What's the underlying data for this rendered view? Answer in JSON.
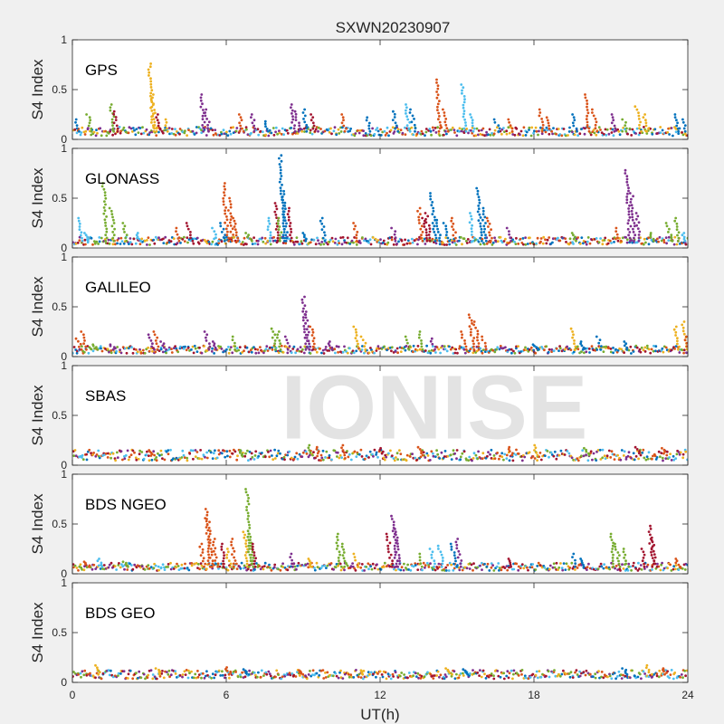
{
  "chart_data": {
    "type": "scatter",
    "title": "SXWN20230907",
    "xlabel": "UT(h)",
    "ylabel": "S4 Index",
    "xlim": [
      0,
      24
    ],
    "ylim": [
      0,
      1
    ],
    "xticks": [
      0,
      6,
      12,
      18,
      24
    ],
    "yticks": [
      0,
      0.5,
      1
    ],
    "yticklabels": [
      "0",
      "0.5",
      "1"
    ],
    "grid": false,
    "legend": "none",
    "watermark": "IONISE",
    "colors": [
      "#0072BD",
      "#D95319",
      "#EDB120",
      "#7E2F8E",
      "#77AC30",
      "#4DBEEE",
      "#A2142F"
    ],
    "panels": [
      {
        "label": "GPS",
        "baseline": 0.08,
        "spikes": [
          [
            0.1,
            0.2,
            0
          ],
          [
            0.6,
            0.25,
            4
          ],
          [
            1.5,
            0.35,
            4
          ],
          [
            1.6,
            0.28,
            6
          ],
          [
            3.0,
            0.76,
            2
          ],
          [
            3.1,
            0.45,
            2
          ],
          [
            3.3,
            0.25,
            6
          ],
          [
            3.6,
            0.2,
            2
          ],
          [
            5.0,
            0.45,
            3
          ],
          [
            5.2,
            0.3,
            3
          ],
          [
            6.5,
            0.25,
            1
          ],
          [
            7.0,
            0.25,
            3
          ],
          [
            7.5,
            0.18,
            0
          ],
          [
            8.5,
            0.35,
            3
          ],
          [
            8.7,
            0.28,
            3
          ],
          [
            9.0,
            0.3,
            0
          ],
          [
            9.3,
            0.25,
            6
          ],
          [
            10.5,
            0.25,
            1
          ],
          [
            11.5,
            0.22,
            0
          ],
          [
            12.5,
            0.28,
            0
          ],
          [
            13.0,
            0.35,
            5
          ],
          [
            13.2,
            0.3,
            0
          ],
          [
            14.2,
            0.6,
            1
          ],
          [
            14.5,
            0.3,
            1
          ],
          [
            15.2,
            0.55,
            5
          ],
          [
            15.5,
            0.25,
            5
          ],
          [
            16.5,
            0.2,
            0
          ],
          [
            17.0,
            0.2,
            1
          ],
          [
            18.2,
            0.3,
            1
          ],
          [
            18.5,
            0.22,
            1
          ],
          [
            19.5,
            0.25,
            0
          ],
          [
            20.0,
            0.45,
            1
          ],
          [
            20.3,
            0.3,
            1
          ],
          [
            21.0,
            0.25,
            3
          ],
          [
            21.5,
            0.2,
            4
          ],
          [
            22.0,
            0.33,
            2
          ],
          [
            22.3,
            0.25,
            2
          ],
          [
            23.5,
            0.25,
            0
          ],
          [
            23.8,
            0.2,
            0
          ]
        ]
      },
      {
        "label": "GLONASS",
        "baseline": 0.07,
        "spikes": [
          [
            0.2,
            0.3,
            5
          ],
          [
            0.5,
            0.15,
            5
          ],
          [
            1.2,
            0.65,
            4
          ],
          [
            1.5,
            0.4,
            4
          ],
          [
            2.0,
            0.25,
            4
          ],
          [
            2.5,
            0.15,
            5
          ],
          [
            4.0,
            0.2,
            1
          ],
          [
            4.5,
            0.25,
            6
          ],
          [
            5.5,
            0.2,
            5
          ],
          [
            5.8,
            0.25,
            0
          ],
          [
            5.9,
            0.65,
            1
          ],
          [
            6.1,
            0.5,
            1
          ],
          [
            6.3,
            0.3,
            1
          ],
          [
            6.8,
            0.15,
            4
          ],
          [
            7.6,
            0.3,
            5
          ],
          [
            7.9,
            0.45,
            6
          ],
          [
            8.0,
            0.3,
            4
          ],
          [
            8.1,
            0.93,
            0
          ],
          [
            8.2,
            0.57,
            0
          ],
          [
            8.4,
            0.4,
            6
          ],
          [
            9.0,
            0.15,
            0
          ],
          [
            9.7,
            0.3,
            0
          ],
          [
            11.0,
            0.25,
            1
          ],
          [
            12.5,
            0.2,
            3
          ],
          [
            13.5,
            0.4,
            1
          ],
          [
            13.7,
            0.3,
            6
          ],
          [
            13.8,
            0.35,
            6
          ],
          [
            14.0,
            0.55,
            0
          ],
          [
            14.2,
            0.28,
            0
          ],
          [
            14.5,
            0.25,
            0
          ],
          [
            14.8,
            0.3,
            1
          ],
          [
            15.5,
            0.35,
            5
          ],
          [
            15.8,
            0.6,
            0
          ],
          [
            16.0,
            0.4,
            0
          ],
          [
            16.2,
            0.3,
            1
          ],
          [
            17.0,
            0.2,
            3
          ],
          [
            19.5,
            0.15,
            4
          ],
          [
            21.2,
            0.2,
            1
          ],
          [
            21.6,
            0.78,
            3
          ],
          [
            21.8,
            0.55,
            3
          ],
          [
            22.0,
            0.35,
            3
          ],
          [
            22.5,
            0.15,
            4
          ],
          [
            23.2,
            0.25,
            4
          ],
          [
            23.5,
            0.3,
            4
          ],
          [
            23.8,
            0.15,
            5
          ]
        ]
      },
      {
        "label": "GALILEO",
        "baseline": 0.07,
        "spikes": [
          [
            0.2,
            0.18,
            1
          ],
          [
            0.4,
            0.25,
            1
          ],
          [
            0.8,
            0.12,
            4
          ],
          [
            1.5,
            0.12,
            3
          ],
          [
            3.0,
            0.22,
            3
          ],
          [
            3.2,
            0.25,
            1
          ],
          [
            3.5,
            0.15,
            3
          ],
          [
            5.2,
            0.25,
            3
          ],
          [
            5.5,
            0.15,
            3
          ],
          [
            6.2,
            0.2,
            4
          ],
          [
            7.8,
            0.28,
            4
          ],
          [
            8.0,
            0.25,
            4
          ],
          [
            8.3,
            0.2,
            3
          ],
          [
            9.0,
            0.6,
            3
          ],
          [
            9.1,
            0.45,
            3
          ],
          [
            9.3,
            0.3,
            1
          ],
          [
            10.0,
            0.15,
            3
          ],
          [
            11.0,
            0.3,
            2
          ],
          [
            11.3,
            0.2,
            2
          ],
          [
            13.0,
            0.2,
            4
          ],
          [
            13.5,
            0.25,
            4
          ],
          [
            14.0,
            0.18,
            3
          ],
          [
            15.2,
            0.25,
            1
          ],
          [
            15.5,
            0.42,
            1
          ],
          [
            15.7,
            0.35,
            1
          ],
          [
            16.0,
            0.2,
            1
          ],
          [
            18.0,
            0.12,
            0
          ],
          [
            19.5,
            0.28,
            2
          ],
          [
            19.8,
            0.15,
            0
          ],
          [
            20.5,
            0.2,
            0
          ],
          [
            21.5,
            0.15,
            0
          ],
          [
            23.5,
            0.3,
            2
          ],
          [
            23.8,
            0.35,
            2
          ],
          [
            23.9,
            0.2,
            1
          ]
        ]
      },
      {
        "label": "SBAS",
        "baseline": 0.1,
        "spikes": [
          [
            3.0,
            0.15,
            1
          ],
          [
            6.5,
            0.15,
            4
          ],
          [
            9.2,
            0.2,
            4
          ],
          [
            9.5,
            0.18,
            1
          ],
          [
            10.5,
            0.2,
            1
          ],
          [
            12.0,
            0.17,
            6
          ],
          [
            13.5,
            0.18,
            1
          ],
          [
            17.0,
            0.18,
            1
          ],
          [
            18.0,
            0.2,
            2
          ],
          [
            20.0,
            0.17,
            4
          ],
          [
            22.0,
            0.18,
            6
          ],
          [
            23.0,
            0.17,
            1
          ]
        ]
      },
      {
        "label": "BDS NGEO",
        "baseline": 0.07,
        "spikes": [
          [
            0.5,
            0.12,
            1
          ],
          [
            1.0,
            0.15,
            5
          ],
          [
            2.0,
            0.12,
            4
          ],
          [
            5.0,
            0.3,
            1
          ],
          [
            5.2,
            0.65,
            1
          ],
          [
            5.3,
            0.55,
            1
          ],
          [
            5.5,
            0.35,
            1
          ],
          [
            5.8,
            0.3,
            6
          ],
          [
            6.0,
            0.25,
            2
          ],
          [
            6.2,
            0.35,
            1
          ],
          [
            6.7,
            0.42,
            2
          ],
          [
            6.8,
            0.85,
            4
          ],
          [
            6.9,
            0.4,
            4
          ],
          [
            7.0,
            0.3,
            6
          ],
          [
            8.5,
            0.2,
            3
          ],
          [
            9.2,
            0.15,
            2
          ],
          [
            10.3,
            0.4,
            4
          ],
          [
            10.5,
            0.3,
            4
          ],
          [
            11.0,
            0.2,
            2
          ],
          [
            12.3,
            0.4,
            6
          ],
          [
            12.5,
            0.58,
            3
          ],
          [
            12.6,
            0.45,
            3
          ],
          [
            13.5,
            0.2,
            4
          ],
          [
            14.0,
            0.25,
            5
          ],
          [
            14.3,
            0.28,
            5
          ],
          [
            14.8,
            0.3,
            0
          ],
          [
            15.0,
            0.35,
            3
          ],
          [
            17.0,
            0.15,
            6
          ],
          [
            19.5,
            0.2,
            0
          ],
          [
            19.8,
            0.15,
            0
          ],
          [
            21.0,
            0.4,
            4
          ],
          [
            21.2,
            0.3,
            4
          ],
          [
            21.5,
            0.25,
            4
          ],
          [
            22.2,
            0.25,
            6
          ],
          [
            22.5,
            0.48,
            6
          ],
          [
            22.6,
            0.35,
            6
          ],
          [
            23.5,
            0.15,
            1
          ]
        ]
      },
      {
        "label": "BDS GEO",
        "baseline": 0.08,
        "spikes": [
          [
            0.9,
            0.17,
            2
          ],
          [
            3.3,
            0.14,
            2
          ],
          [
            6.0,
            0.15,
            1
          ],
          [
            6.7,
            0.13,
            0
          ],
          [
            8.8,
            0.12,
            1
          ],
          [
            11.2,
            0.12,
            2
          ],
          [
            14.6,
            0.14,
            2
          ],
          [
            15.3,
            0.13,
            0
          ],
          [
            21.5,
            0.14,
            0
          ],
          [
            22.4,
            0.17,
            2
          ],
          [
            23.0,
            0.14,
            1
          ]
        ]
      }
    ]
  }
}
